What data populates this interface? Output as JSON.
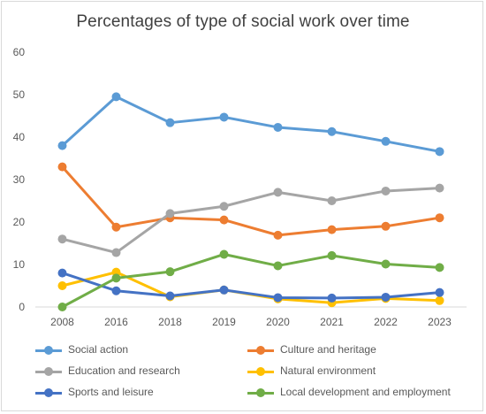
{
  "chart_data": {
    "type": "line",
    "title": "Percentages of type of social work over time",
    "xlabel": "",
    "ylabel": "",
    "categories": [
      "2008",
      "2016",
      "2018",
      "2019",
      "2020",
      "2021",
      "2022",
      "2023"
    ],
    "ylim": [
      0,
      60
    ],
    "yticks": [
      "0",
      "10",
      "20",
      "30",
      "40",
      "50",
      "60"
    ],
    "grid": false,
    "legend_position": "bottom",
    "series": [
      {
        "name": "Social action",
        "color": "#5B9BD5",
        "values": [
          38,
          49.5,
          43.4,
          44.7,
          42.3,
          41.3,
          39,
          36.6
        ]
      },
      {
        "name": "Culture and heritage",
        "color": "#ED7D31",
        "values": [
          33,
          18.8,
          21,
          20.5,
          16.9,
          18.2,
          19,
          21
        ]
      },
      {
        "name": "Education and research",
        "color": "#A5A5A5",
        "values": [
          16,
          12.8,
          22,
          23.7,
          27,
          25,
          27.3,
          28
        ]
      },
      {
        "name": "Natural environment",
        "color": "#FFC000",
        "values": [
          5,
          8.2,
          2.4,
          4,
          1.9,
          1,
          2,
          1.5
        ]
      },
      {
        "name": "Sports and leisure",
        "color": "#4472C4",
        "values": [
          8,
          3.8,
          2.6,
          4,
          2.2,
          2.1,
          2.3,
          3.4
        ]
      },
      {
        "name": "Local development and employment",
        "color": "#70AD47",
        "values": [
          0,
          6.8,
          8.3,
          12.4,
          9.7,
          12.1,
          10.1,
          9.3
        ]
      }
    ]
  }
}
